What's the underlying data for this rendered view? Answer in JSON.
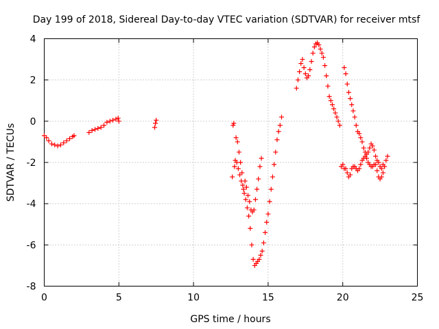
{
  "chart_data": {
    "type": "scatter",
    "title": "Day 199 of 2018, Sidereal Day-to-day VTEC variation (SDTVAR) for receiver mtsf",
    "xlabel": "GPS time / hours",
    "ylabel": "SDTVAR / TECUs",
    "xlim": [
      0,
      25
    ],
    "ylim": [
      -8,
      4
    ],
    "x_ticks": [
      0,
      5,
      10,
      15,
      20,
      25
    ],
    "x_tick_labels": [
      "0",
      "5",
      "10",
      "15",
      "20",
      "25"
    ],
    "y_ticks": [
      -8,
      -6,
      -4,
      -2,
      0,
      2,
      4
    ],
    "y_tick_labels": [
      "-8",
      "-6",
      "-4",
      "-2",
      "0",
      "2",
      "4"
    ],
    "grid": true,
    "marker": "+",
    "color": "#ff0000",
    "series": [
      {
        "name": "mtsf",
        "points": [
          [
            0.0,
            -0.7
          ],
          [
            0.15,
            -0.8
          ],
          [
            0.3,
            -0.95
          ],
          [
            0.5,
            -1.1
          ],
          [
            0.7,
            -1.15
          ],
          [
            0.9,
            -1.2
          ],
          [
            1.1,
            -1.15
          ],
          [
            1.3,
            -1.05
          ],
          [
            1.5,
            -0.95
          ],
          [
            1.7,
            -0.85
          ],
          [
            1.9,
            -0.75
          ],
          [
            2.0,
            -0.7
          ],
          [
            3.0,
            -0.55
          ],
          [
            3.2,
            -0.45
          ],
          [
            3.4,
            -0.4
          ],
          [
            3.6,
            -0.35
          ],
          [
            3.8,
            -0.3
          ],
          [
            4.0,
            -0.2
          ],
          [
            4.2,
            -0.05
          ],
          [
            4.4,
            0.0
          ],
          [
            4.6,
            0.05
          ],
          [
            4.8,
            0.1
          ],
          [
            4.95,
            0.15
          ],
          [
            5.0,
            0.0
          ],
          [
            7.4,
            -0.3
          ],
          [
            7.45,
            -0.1
          ],
          [
            7.5,
            0.05
          ],
          [
            12.6,
            -2.7
          ],
          [
            12.65,
            -0.2
          ],
          [
            12.7,
            -0.1
          ],
          [
            12.75,
            -2.2
          ],
          [
            12.8,
            -1.9
          ],
          [
            12.85,
            -0.8
          ],
          [
            12.9,
            -2.0
          ],
          [
            12.95,
            -1.0
          ],
          [
            13.0,
            -2.3
          ],
          [
            13.05,
            -1.5
          ],
          [
            13.1,
            -2.6
          ],
          [
            13.15,
            -2.0
          ],
          [
            13.2,
            -2.9
          ],
          [
            13.25,
            -2.5
          ],
          [
            13.3,
            -3.1
          ],
          [
            13.35,
            -3.3
          ],
          [
            13.4,
            -3.5
          ],
          [
            13.45,
            -2.9
          ],
          [
            13.5,
            -3.8
          ],
          [
            13.55,
            -3.2
          ],
          [
            13.6,
            -4.2
          ],
          [
            13.65,
            -3.6
          ],
          [
            13.7,
            -4.6
          ],
          [
            13.75,
            -3.9
          ],
          [
            13.8,
            -5.2
          ],
          [
            13.85,
            -4.3
          ],
          [
            13.9,
            -6.0
          ],
          [
            13.95,
            -4.4
          ],
          [
            14.0,
            -6.7
          ],
          [
            14.05,
            -4.3
          ],
          [
            14.1,
            -7.0
          ],
          [
            14.15,
            -3.8
          ],
          [
            14.2,
            -6.9
          ],
          [
            14.25,
            -3.3
          ],
          [
            14.3,
            -6.8
          ],
          [
            14.35,
            -2.8
          ],
          [
            14.4,
            -6.7
          ],
          [
            14.45,
            -2.2
          ],
          [
            14.5,
            -6.5
          ],
          [
            14.55,
            -1.8
          ],
          [
            14.6,
            -6.3
          ],
          [
            14.7,
            -5.9
          ],
          [
            14.8,
            -5.4
          ],
          [
            14.9,
            -4.9
          ],
          [
            15.0,
            -4.5
          ],
          [
            15.1,
            -3.9
          ],
          [
            15.2,
            -3.3
          ],
          [
            15.3,
            -2.7
          ],
          [
            15.4,
            -2.1
          ],
          [
            15.5,
            -1.5
          ],
          [
            15.6,
            -0.9
          ],
          [
            15.7,
            -0.5
          ],
          [
            15.8,
            -0.2
          ],
          [
            15.9,
            0.2
          ],
          [
            16.9,
            1.6
          ],
          [
            17.0,
            2.0
          ],
          [
            17.1,
            2.4
          ],
          [
            17.2,
            2.8
          ],
          [
            17.3,
            3.0
          ],
          [
            17.4,
            2.6
          ],
          [
            17.5,
            2.3
          ],
          [
            17.6,
            2.1
          ],
          [
            17.7,
            2.2
          ],
          [
            17.8,
            2.5
          ],
          [
            17.9,
            2.9
          ],
          [
            18.0,
            3.3
          ],
          [
            18.1,
            3.6
          ],
          [
            18.2,
            3.75
          ],
          [
            18.3,
            3.8
          ],
          [
            18.4,
            3.7
          ],
          [
            18.5,
            3.5
          ],
          [
            18.6,
            3.3
          ],
          [
            18.7,
            3.1
          ],
          [
            18.8,
            2.7
          ],
          [
            18.9,
            2.2
          ],
          [
            19.0,
            1.7
          ],
          [
            19.1,
            1.2
          ],
          [
            19.2,
            1.0
          ],
          [
            19.3,
            0.8
          ],
          [
            19.4,
            0.6
          ],
          [
            19.5,
            0.4
          ],
          [
            19.6,
            0.2
          ],
          [
            19.7,
            0.0
          ],
          [
            19.8,
            -0.2
          ],
          [
            19.9,
            -2.2
          ],
          [
            20.0,
            -2.1
          ],
          [
            20.1,
            -2.3
          ],
          [
            20.2,
            -2.3
          ],
          [
            20.3,
            -2.5
          ],
          [
            20.4,
            -2.7
          ],
          [
            20.5,
            -2.6
          ],
          [
            20.6,
            -2.3
          ],
          [
            20.7,
            -2.2
          ],
          [
            20.8,
            -2.2
          ],
          [
            20.9,
            -2.3
          ],
          [
            21.0,
            -2.4
          ],
          [
            21.1,
            -2.3
          ],
          [
            21.2,
            -2.1
          ],
          [
            21.3,
            -1.9
          ],
          [
            21.4,
            -1.8
          ],
          [
            21.5,
            -1.7
          ],
          [
            21.6,
            -1.8
          ],
          [
            21.7,
            -2.0
          ],
          [
            21.8,
            -2.1
          ],
          [
            21.9,
            -2.2
          ],
          [
            22.0,
            -2.2
          ],
          [
            22.1,
            -2.1
          ],
          [
            22.2,
            -2.1
          ],
          [
            22.3,
            -2.4
          ],
          [
            22.4,
            -2.7
          ],
          [
            22.5,
            -2.8
          ],
          [
            22.6,
            -2.7
          ],
          [
            22.7,
            -2.5
          ],
          [
            22.8,
            -2.2
          ],
          [
            22.9,
            -1.9
          ],
          [
            23.0,
            -1.7
          ],
          [
            20.1,
            2.6
          ],
          [
            20.2,
            2.3
          ],
          [
            20.3,
            1.8
          ],
          [
            20.4,
            1.4
          ],
          [
            20.5,
            1.1
          ],
          [
            20.6,
            0.8
          ],
          [
            20.7,
            0.5
          ],
          [
            20.8,
            0.2
          ],
          [
            20.9,
            -0.2
          ],
          [
            21.0,
            -0.5
          ],
          [
            21.1,
            -0.6
          ],
          [
            21.2,
            -0.8
          ],
          [
            21.3,
            -1.0
          ],
          [
            21.4,
            -1.3
          ],
          [
            21.5,
            -1.5
          ],
          [
            21.6,
            -1.6
          ],
          [
            21.7,
            -1.5
          ],
          [
            21.8,
            -1.3
          ],
          [
            21.9,
            -1.1
          ],
          [
            22.0,
            -1.2
          ],
          [
            22.1,
            -1.4
          ],
          [
            22.2,
            -1.7
          ],
          [
            22.3,
            -1.9
          ],
          [
            22.4,
            -2.0
          ],
          [
            22.5,
            -2.2
          ],
          [
            22.6,
            -2.3
          ],
          [
            22.7,
            -2.1
          ]
        ]
      }
    ]
  }
}
